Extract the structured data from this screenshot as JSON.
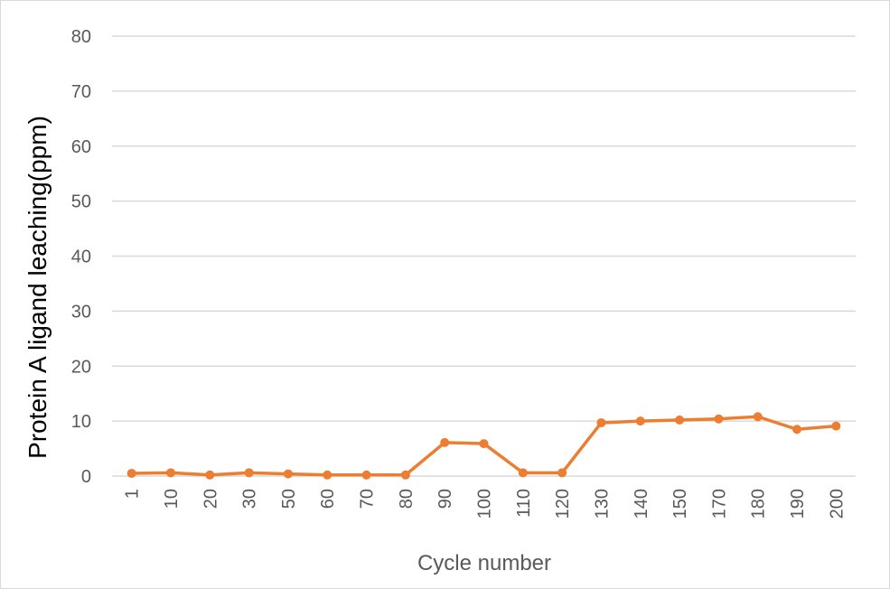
{
  "chart_data": {
    "type": "line",
    "categories": [
      "1",
      "10",
      "20",
      "30",
      "50",
      "60",
      "70",
      "80",
      "90",
      "100",
      "110",
      "120",
      "130",
      "140",
      "150",
      "170",
      "180",
      "190",
      "200"
    ],
    "series": [
      {
        "values": [
          0.5,
          0.6,
          0.2,
          0.6,
          0.4,
          0.2,
          0.2,
          0.2,
          6.1,
          5.9,
          0.6,
          0.6,
          9.7,
          10.0,
          10.2,
          10.4,
          10.8,
          8.5,
          9.1
        ],
        "color": "#ed7d31"
      }
    ],
    "title": "",
    "xlabel": "Cycle number",
    "ylabel": "Protein A ligand leaching(ppm)",
    "ylim": [
      0,
      80
    ],
    "yticks": [
      0,
      10,
      20,
      30,
      40,
      50,
      60,
      70,
      80
    ],
    "grid": true,
    "legend": "none"
  }
}
